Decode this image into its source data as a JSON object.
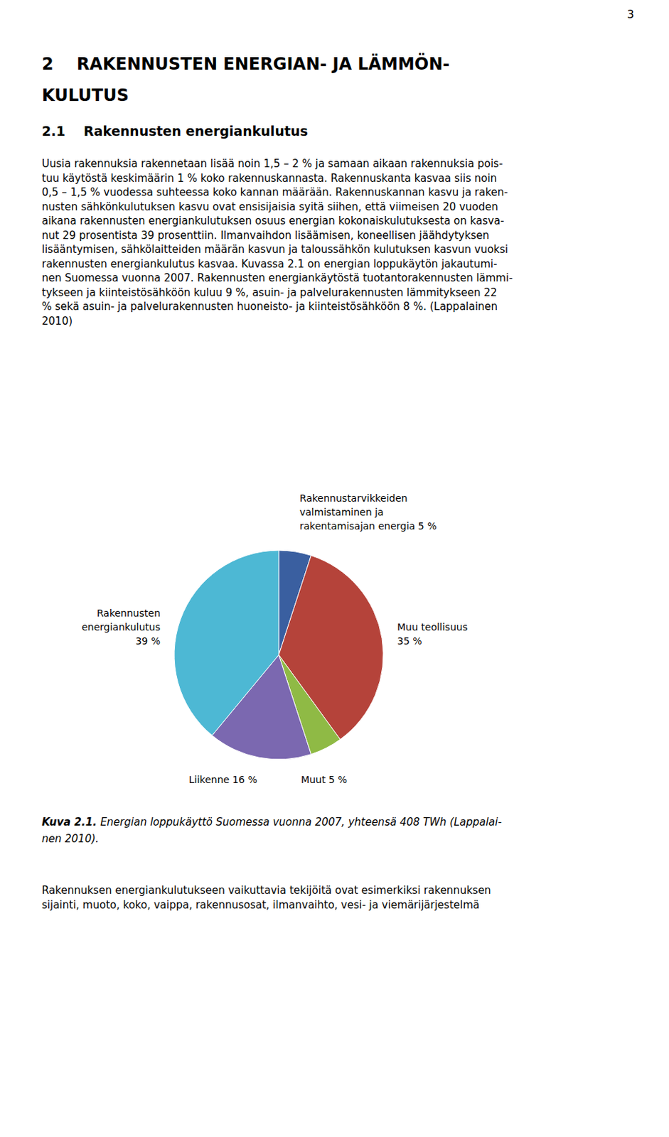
{
  "page_number": "3",
  "chapter_title": [
    "2    RAKENNUSTEN ENERGIAN- JA LÄMMÖN-",
    "KULUTUS"
  ],
  "section_title": "2.1    Rakennusten energiankulutus",
  "body_text": [
    "Uusia rakennuksia rakennetaan lisää noin 1,5 – 2 % ja samaan aikaan rakennuksia pois-",
    "tuu käytöstä keskimäärin 1 % koko rakennuskannasta. Rakennuskanta kasvaa siis noin",
    "0,5 – 1,5 % vuodessa suhteessa koko kannan määrään. Rakennuskannan kasvu ja raken-",
    "nusten sähkönkulutuksen kasvu ovat ensisijaisia syitä siihen, että viimeisen 20 vuoden",
    "aikana rakennusten energiankulutuksen osuus energian kokonaiskulutuksesta on kasva-",
    "nut 29 prosentista 39 prosenttiin. Ilmanvaihdon lisäämisen, koneellisen jäähdytyksen",
    "lisääntymisen, sähkölaitteiden määrän kasvun ja taloussähkön kulutuksen kasvun vuoksi",
    "rakennusten energiankulutus kasvaa. Kuvassa 2.1 on energian loppukäytön jakautumi-",
    "nen Suomessa vuonna 2007. Rakennusten energiankäytöstä tuotantorakennusten lämmi-",
    "tykseen ja kiinteistösähköön kuluu 9 %, asuin- ja palvelurakennusten lämmitykseen 22",
    "% sekä asuin- ja palvelurakennusten huoneisto- ja kiinteistösähköön 8 %. (Lappalainen",
    "2010)"
  ],
  "caption_label": "Kuva 2.1.",
  "caption": [
    "Energian loppukäyttö Suomessa vuonna 2007, yhteensä 408 TWh (Lappalai-",
    "nen 2010)."
  ],
  "bottom_text": [
    "Rakennuksen energiankulutukseen vaikuttavia tekijöitä ovat esimerkiksi rakennuksen",
    "sijainti, muoto, koko, vaippa, rakennusosat, ilmanvaihto, vesi- ja viemärijärjestelmä"
  ],
  "chart_data": {
    "type": "pie",
    "categories": [
      "Rakennustarvikkeiden\nvalmistaminen ja\nrakentamisajan energia",
      "Muu teollisuus",
      "Muut",
      "Liikenne",
      "Rakennusten\nenergiankulutus"
    ],
    "values": [
      5,
      35,
      5,
      16,
      39
    ],
    "value_labels": [
      "5 %",
      "35 %",
      "5 %",
      "16 %",
      "39 %"
    ],
    "colors": [
      "#3a5fa0",
      "#b5433a",
      "#8fba45",
      "#7b68b0",
      "#4db8d4"
    ],
    "data_labels": true
  }
}
